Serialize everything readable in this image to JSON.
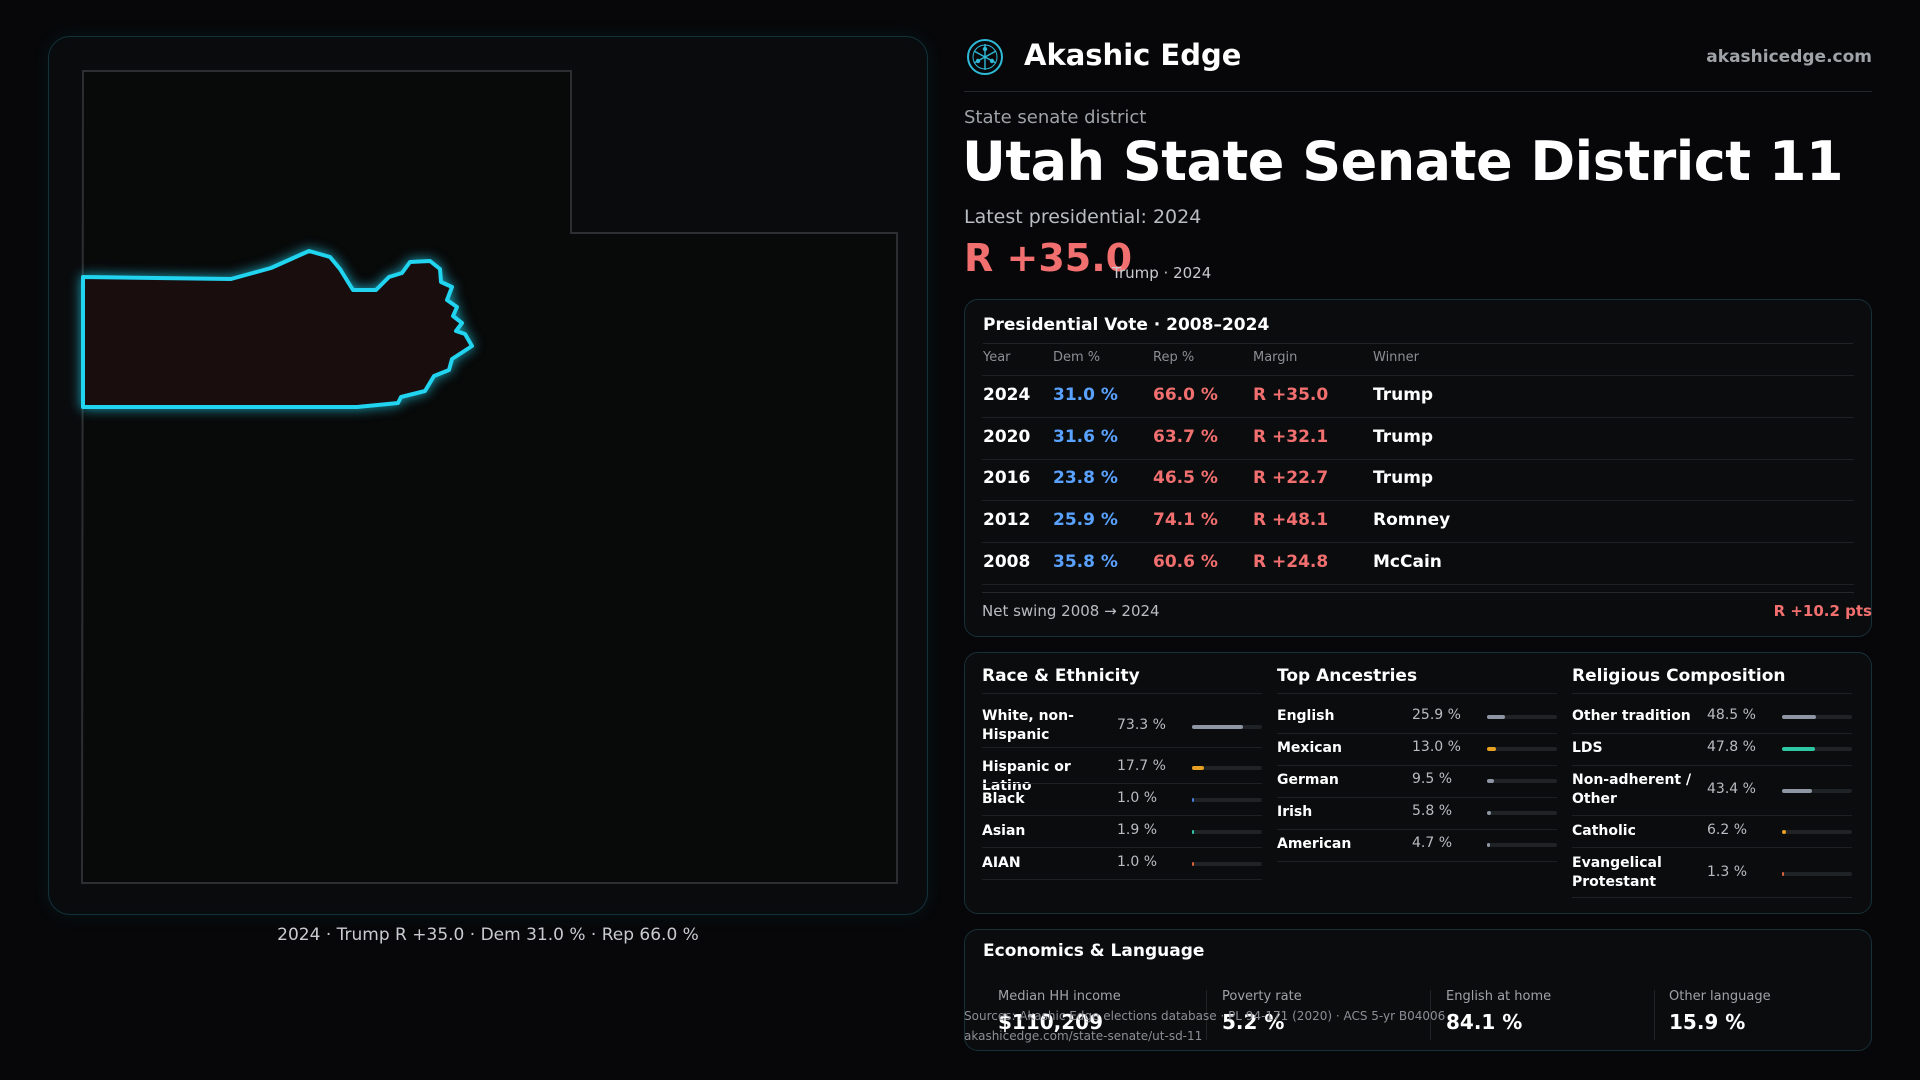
{
  "map": {
    "caption": "2024 · Trump R +35.0 · Dem 31.0 % · Rep 66.0 %"
  },
  "header": {
    "brand": "Akashic Edge",
    "site": "akashicedge.com",
    "logo_icon": "compass-network-logo"
  },
  "district": {
    "kicker": "State senate district",
    "title": "Utah State Senate District 11",
    "latest": "Latest presidential: 2024",
    "margin": "R +35.0",
    "margin_sub": "Trump · 2024"
  },
  "presidential": {
    "title": "Presidential Vote · 2008–2024",
    "headers": [
      "Year",
      "Dem %",
      "Rep %",
      "Margin",
      "Winner"
    ],
    "rows": [
      {
        "year": "2024",
        "dem": "31.0 %",
        "rep": "66.0 %",
        "margin": "R +35.0",
        "winner": "Trump"
      },
      {
        "year": "2020",
        "dem": "31.6 %",
        "rep": "63.7 %",
        "margin": "R +32.1",
        "winner": "Trump"
      },
      {
        "year": "2016",
        "dem": "23.8 %",
        "rep": "46.5 %",
        "margin": "R +22.7",
        "winner": "Trump"
      },
      {
        "year": "2012",
        "dem": "25.9 %",
        "rep": "74.1 %",
        "margin": "R +48.1",
        "winner": "Romney"
      },
      {
        "year": "2008",
        "dem": "35.8 %",
        "rep": "60.6 %",
        "margin": "R +24.8",
        "winner": "McCain"
      }
    ],
    "swing_label": "Net swing 2008 → 2024",
    "swing_value": "R +10.2 pts"
  },
  "race": {
    "title": "Race & Ethnicity",
    "items": [
      {
        "label": "White, non-Hispanic",
        "value": "73.3 %",
        "pct": 73.3,
        "color": "#8e96a3"
      },
      {
        "label": "Hispanic or Latino",
        "value": "17.7 %",
        "pct": 17.7,
        "color": "#e8a020"
      },
      {
        "label": "Black",
        "value": "1.0 %",
        "pct": 1.0,
        "color": "#4b7bd8"
      },
      {
        "label": "Asian",
        "value": "1.9 %",
        "pct": 1.9,
        "color": "#2dc7a3"
      },
      {
        "label": "AIAN",
        "value": "1.0 %",
        "pct": 1.0,
        "color": "#d8623c"
      }
    ]
  },
  "ancestries": {
    "title": "Top Ancestries",
    "items": [
      {
        "label": "English",
        "value": "25.9 %",
        "pct": 25.9,
        "color": "#8e96a3"
      },
      {
        "label": "Mexican",
        "value": "13.0 %",
        "pct": 13.0,
        "color": "#e8a020"
      },
      {
        "label": "German",
        "value": "9.5 %",
        "pct": 9.5,
        "color": "#8e96a3"
      },
      {
        "label": "Irish",
        "value": "5.8 %",
        "pct": 5.8,
        "color": "#8e96a3"
      },
      {
        "label": "American",
        "value": "4.7 %",
        "pct": 4.7,
        "color": "#8e96a3"
      }
    ]
  },
  "religion": {
    "title": "Religious Composition",
    "items": [
      {
        "label": "Other tradition",
        "value": "48.5 %",
        "pct": 48.5,
        "color": "#8e96a3"
      },
      {
        "label": "LDS",
        "value": "47.8 %",
        "pct": 47.8,
        "color": "#2dc7a3"
      },
      {
        "label": "Non-adherent / Other",
        "value": "43.4 %",
        "pct": 43.4,
        "color": "#8e96a3"
      },
      {
        "label": "Catholic",
        "value": "6.2 %",
        "pct": 6.2,
        "color": "#e8a020"
      },
      {
        "label": "Evangelical Protestant",
        "value": "1.3 %",
        "pct": 1.3,
        "color": "#d8623c"
      }
    ]
  },
  "economics": {
    "title": "Economics & Language",
    "stats": [
      {
        "label": "Median HH income",
        "value": "$110,209"
      },
      {
        "label": "Poverty rate",
        "value": "5.2 %"
      },
      {
        "label": "English at home",
        "value": "84.1 %"
      },
      {
        "label": "Other language",
        "value": "15.9 %"
      }
    ]
  },
  "source": {
    "line1": "Sources: Akashic Edge elections database · PL 94-171 (2020) · ACS 5-yr B04006",
    "line2": "akashicedge.com/state-senate/ut-sd-11"
  }
}
